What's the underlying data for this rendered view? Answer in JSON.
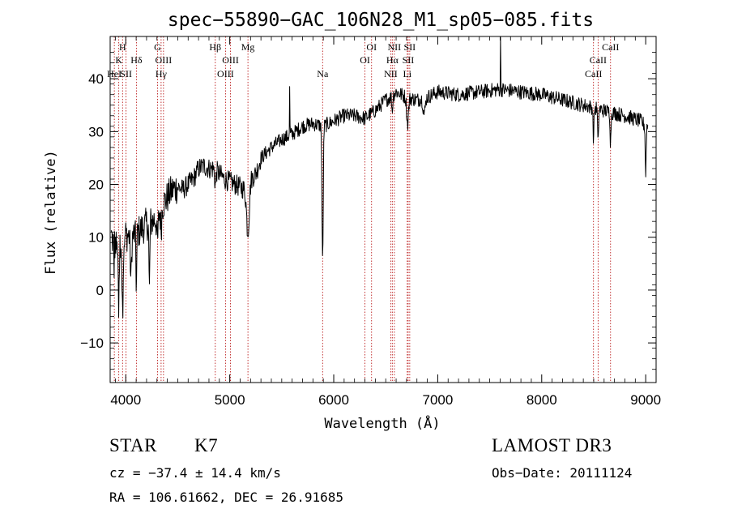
{
  "chart_data": {
    "type": "line",
    "title": "spec−55890−GAC_106N28_M1_sp05−085.fits",
    "xlabel": "Wavelength (Å)",
    "ylabel": "Flux (relative)",
    "xlim": [
      3850,
      9100
    ],
    "ylim": [
      -17.5,
      48
    ],
    "xticks": [
      {
        "v": 4000,
        "label": "4000"
      },
      {
        "v": 5000,
        "label": "5000"
      },
      {
        "v": 6000,
        "label": "6000"
      },
      {
        "v": 7000,
        "label": "7000"
      },
      {
        "v": 8000,
        "label": "8000"
      },
      {
        "v": 9000,
        "label": "9000"
      }
    ],
    "yticks": [
      {
        "v": -10,
        "label": "−10"
      },
      {
        "v": 0,
        "label": "0"
      },
      {
        "v": 10,
        "label": "10"
      },
      {
        "v": 20,
        "label": "20"
      },
      {
        "v": 30,
        "label": "30"
      },
      {
        "v": 40,
        "label": "40"
      }
    ],
    "line_color": "#b30000",
    "lines": [
      {
        "x": 3933,
        "label": "K",
        "row": 2
      },
      {
        "x": 3969,
        "label": "H",
        "row": 1
      },
      {
        "x": 3890,
        "label": "HeI",
        "row": 3
      },
      {
        "x": 4003,
        "label": "SII",
        "row": 3
      },
      {
        "x": 4102,
        "label": "Hδ",
        "row": 2
      },
      {
        "x": 4305,
        "label": "G",
        "row": 1
      },
      {
        "x": 4340,
        "label": "Hγ",
        "row": 3
      },
      {
        "x": 4363,
        "label": "OIII",
        "row": 2
      },
      {
        "x": 4861,
        "label": "Hβ",
        "row": 1
      },
      {
        "x": 4959,
        "label": "OIII",
        "row": 3
      },
      {
        "x": 5007,
        "label": "OIII",
        "row": 2
      },
      {
        "x": 5175,
        "label": "Mg",
        "row": 1
      },
      {
        "x": 5893,
        "label": "Na",
        "row": 3
      },
      {
        "x": 6300,
        "label": "OI",
        "row": 2
      },
      {
        "x": 6364,
        "label": "OI",
        "row": 1
      },
      {
        "x": 6548,
        "label": "NII",
        "row": 3
      },
      {
        "x": 6563,
        "label": "Hα",
        "row": 2
      },
      {
        "x": 6583,
        "label": "NII",
        "row": 1
      },
      {
        "x": 6707,
        "label": "Li",
        "row": 3
      },
      {
        "x": 6716,
        "label": "SII",
        "row": 2
      },
      {
        "x": 6731,
        "label": "SII",
        "row": 1
      },
      {
        "x": 8498,
        "label": "CaII",
        "row": 3
      },
      {
        "x": 8542,
        "label": "CaII",
        "row": 2
      },
      {
        "x": 8662,
        "label": "CaII",
        "row": 1
      }
    ],
    "spectrum_anchors": [
      [
        3850,
        11
      ],
      [
        3880,
        9
      ],
      [
        3920,
        8
      ],
      [
        3960,
        9
      ],
      [
        4000,
        10.5
      ],
      [
        4050,
        10
      ],
      [
        4120,
        11
      ],
      [
        4200,
        12.5
      ],
      [
        4260,
        13
      ],
      [
        4300,
        14
      ],
      [
        4350,
        16
      ],
      [
        4400,
        17.5
      ],
      [
        4450,
        19
      ],
      [
        4500,
        19.5
      ],
      [
        4550,
        19
      ],
      [
        4600,
        20
      ],
      [
        4650,
        21
      ],
      [
        4700,
        23
      ],
      [
        4750,
        23.5
      ],
      [
        4800,
        23
      ],
      [
        4850,
        23
      ],
      [
        4900,
        22
      ],
      [
        4950,
        21
      ],
      [
        5000,
        20.5
      ],
      [
        5050,
        20
      ],
      [
        5100,
        19.5
      ],
      [
        5150,
        19
      ],
      [
        5200,
        21
      ],
      [
        5250,
        22
      ],
      [
        5300,
        25
      ],
      [
        5400,
        27
      ],
      [
        5500,
        28.5
      ],
      [
        5600,
        29.5
      ],
      [
        5700,
        31
      ],
      [
        5800,
        31.5
      ],
      [
        5900,
        31
      ],
      [
        6000,
        32
      ],
      [
        6100,
        33
      ],
      [
        6200,
        33
      ],
      [
        6300,
        32.5
      ],
      [
        6400,
        34
      ],
      [
        6500,
        36
      ],
      [
        6550,
        36.5
      ],
      [
        6600,
        37.5
      ],
      [
        6650,
        37
      ],
      [
        6700,
        36.5
      ],
      [
        6800,
        36
      ],
      [
        6900,
        36.5
      ],
      [
        7000,
        37.5
      ],
      [
        7200,
        37
      ],
      [
        7400,
        37.5
      ],
      [
        7600,
        38
      ],
      [
        7800,
        37.5
      ],
      [
        8000,
        37
      ],
      [
        8200,
        36
      ],
      [
        8400,
        35
      ],
      [
        8600,
        34
      ],
      [
        8800,
        33
      ],
      [
        8950,
        32
      ],
      [
        9000,
        31
      ]
    ],
    "spectrum_features": [
      {
        "x": 3933,
        "depth": 12,
        "w": 6
      },
      {
        "x": 3969,
        "depth": 14,
        "w": 7
      },
      {
        "x": 4050,
        "depth": 8,
        "w": 8
      },
      {
        "x": 4102,
        "depth": 10,
        "w": 6
      },
      {
        "x": 4227,
        "depth": 13,
        "w": 6
      },
      {
        "x": 4305,
        "depth": 5,
        "w": 10
      },
      {
        "x": 4340,
        "depth": 4,
        "w": 8
      },
      {
        "x": 4861,
        "depth": 3,
        "w": 8
      },
      {
        "x": 5175,
        "depth": 9,
        "w": 18
      },
      {
        "x": 5893,
        "depth": 26,
        "w": 8
      },
      {
        "x": 6563,
        "depth": 3,
        "w": 6
      },
      {
        "x": 6710,
        "depth": 5,
        "w": 12
      },
      {
        "x": 6870,
        "depth": 3,
        "w": 14
      },
      {
        "x": 8498,
        "depth": 6,
        "w": 6
      },
      {
        "x": 8542,
        "depth": 7,
        "w": 6
      },
      {
        "x": 8662,
        "depth": 6,
        "w": 6
      },
      {
        "x": 9000,
        "depth": 9,
        "w": 6
      },
      {
        "x": 5577,
        "depth": -12,
        "w": 2
      },
      {
        "x": 7605,
        "depth": -13,
        "w": 2
      }
    ]
  },
  "info": {
    "class": "STAR",
    "subclass": "K7",
    "survey": "LAMOST DR3",
    "cz": "cz = −37.4 ± 14.4 km/s",
    "obs_date": "Obs−Date: 20111124",
    "radec": "RA = 106.61662, DEC =  26.91685"
  }
}
